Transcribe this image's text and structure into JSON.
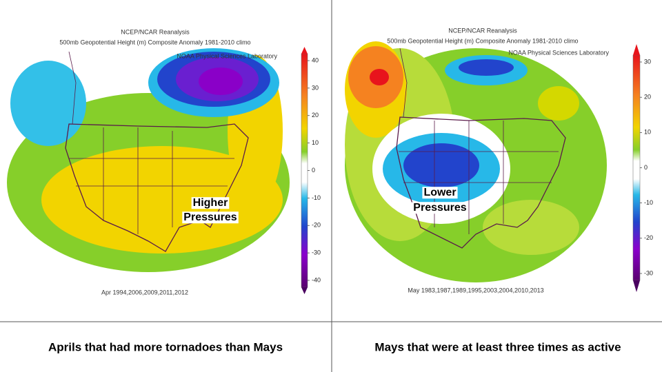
{
  "panels": [
    {
      "title_lines": [
        "NCEP/NCAR Reanalysis",
        "500mb Geopotential Height (m) Composite Anomaly 1981-2010 climo"
      ],
      "credit": "NOAA Physical Sciences Laboratory",
      "colorbar_ticks": [
        40,
        30,
        20,
        10,
        0,
        -10,
        -20,
        -30,
        -40
      ],
      "dates": "Apr 1994,2006,2009,2011,2012",
      "annotation": [
        "Higher",
        "Pressures"
      ],
      "caption": "Aprils that had more tornadoes than Mays"
    },
    {
      "title_lines": [
        "NCEP/NCAR Reanalysis",
        "500mb Geopotential Height (m) Composite Anomaly 1981-2010 climo"
      ],
      "credit": "NOAA Physical Sciences Laboratory",
      "colorbar_ticks": [
        30,
        20,
        10,
        0,
        -10,
        -20,
        -30
      ],
      "dates": "May 1983,1987,1989,1995,2003,2004,2010,2013",
      "annotation": [
        "Lower",
        "Pressures"
      ],
      "caption": "Mays that were at least three times as active"
    }
  ]
}
